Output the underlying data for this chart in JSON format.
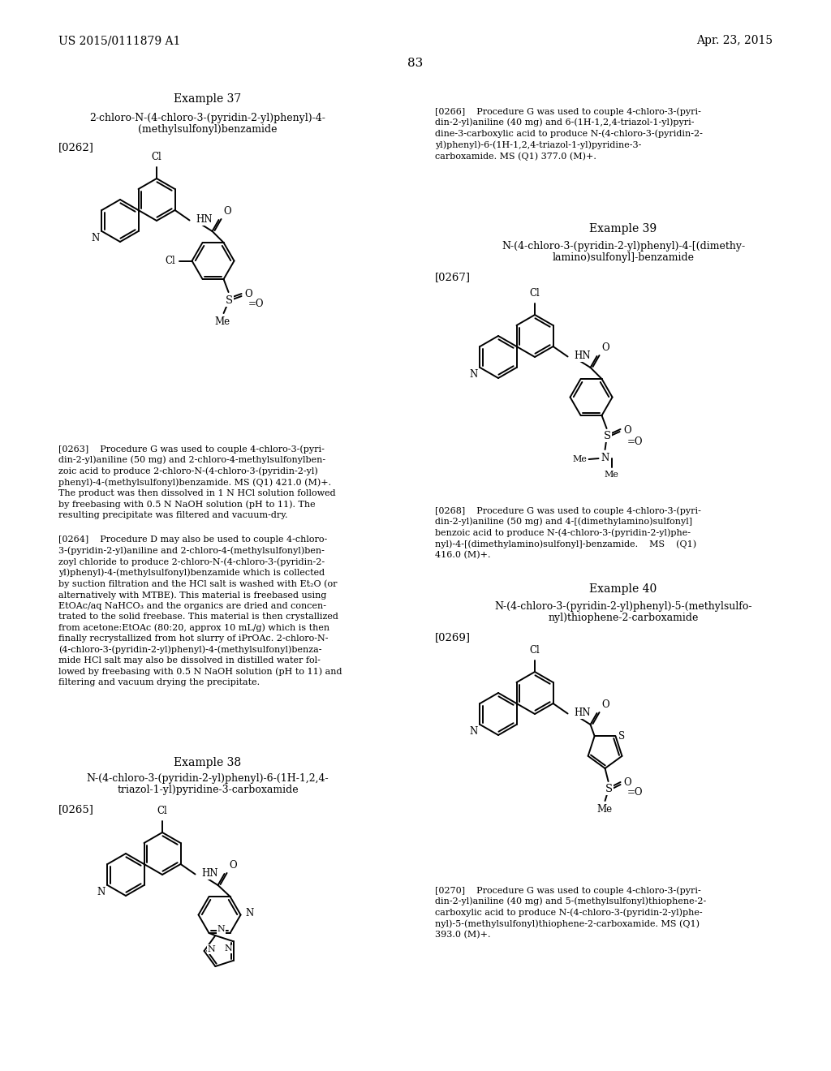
{
  "page_number": "83",
  "header_left": "US 2015/0111879 A1",
  "header_right": "Apr. 23, 2015",
  "bg": "#ffffff"
}
